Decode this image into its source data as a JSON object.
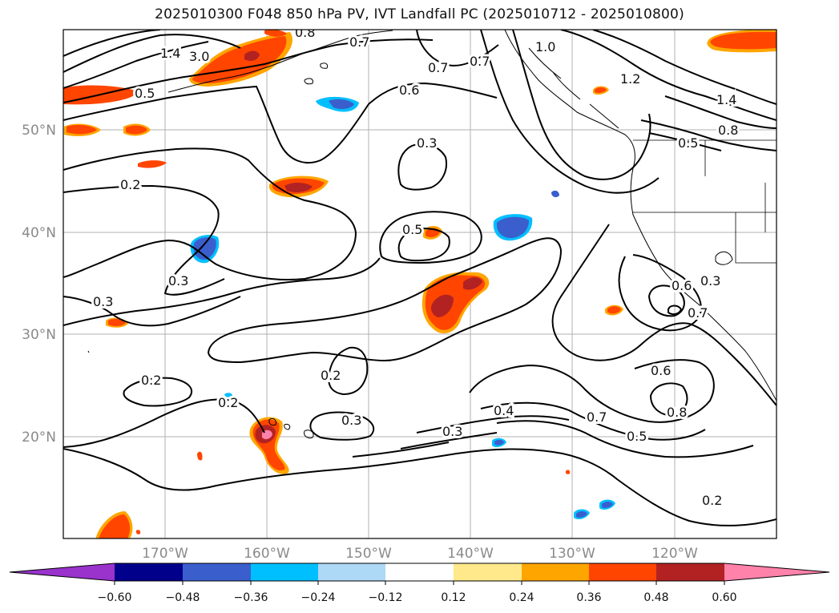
{
  "title": "2025010300 F048 850 hPa PV, IVT Landfall PC (2025010712 - 2025010800)",
  "map": {
    "lat_labels": [
      "50°N",
      "40°N",
      "30°N",
      "20°N"
    ],
    "lon_labels": [
      "170°W",
      "160°W",
      "150°W",
      "140°W",
      "130°W",
      "120°W"
    ],
    "contour_labels": [
      "1.4",
      "3.0",
      "0.8",
      "0.7",
      "1.0",
      "0.7",
      "0.7",
      "0.5",
      "0.6",
      "1.2",
      "1.4",
      "0.8",
      "0.5",
      "0.3",
      "0.2",
      "0.5",
      "0.3",
      "0.3",
      "0.6",
      "0.7",
      "0.3",
      "0.2",
      "0.2",
      "0.2",
      "0.3",
      "0.4",
      "0.3",
      "0.6",
      "0.7",
      "0.5",
      "0.8",
      "0.2"
    ]
  },
  "colorbar": {
    "tick_labels": [
      "−0.60",
      "−0.48",
      "−0.36",
      "−0.24",
      "−0.12",
      "0.12",
      "0.24",
      "0.36",
      "0.48",
      "0.60"
    ],
    "colors": [
      "#9933cc",
      "#00008b",
      "#3a5fcd",
      "#00bfff",
      "#add8f6",
      "#ffffff",
      "#ffe98a",
      "#ffa500",
      "#ff4500",
      "#b22222",
      "#ff82ab"
    ]
  }
}
